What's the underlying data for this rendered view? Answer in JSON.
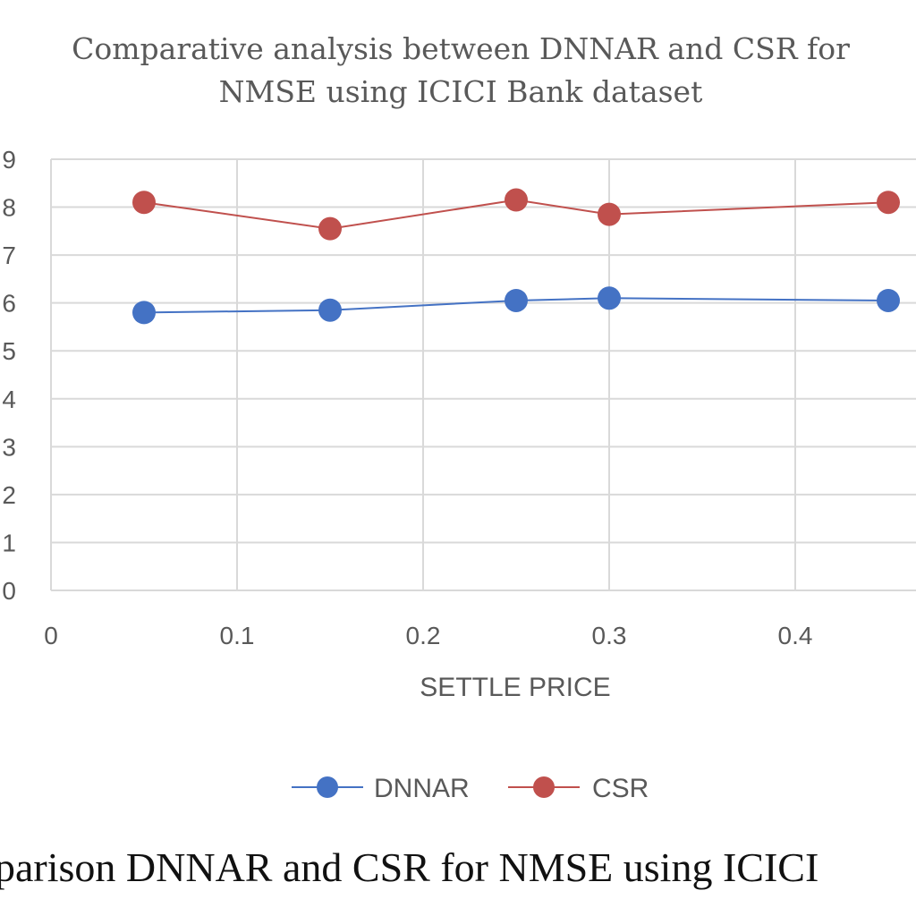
{
  "chart_data": {
    "type": "line",
    "title": [
      "Comparative analysis between DNNAR and CSR for",
      "NMSE using ICICI Bank dataset"
    ],
    "xlabel": "SETTLE PRICE",
    "ylabel": "",
    "xlim": [
      0,
      0.5
    ],
    "ylim": [
      0,
      9
    ],
    "x_ticks": [
      "0",
      "0.1",
      "0.2",
      "0.3",
      "0.4"
    ],
    "y_ticks": [
      "0",
      "1",
      "2",
      "3",
      "4",
      "5",
      "6",
      "7",
      "8",
      "9"
    ],
    "grid": true,
    "legend_position": "bottom",
    "series": [
      {
        "name": "DNNAR",
        "color": "#4472c4",
        "x": [
          0.05,
          0.15,
          0.25,
          0.3,
          0.45
        ],
        "y": [
          5.8,
          5.85,
          6.05,
          6.1,
          6.05
        ]
      },
      {
        "name": "CSR",
        "color": "#c0504d",
        "x": [
          0.05,
          0.15,
          0.25,
          0.3,
          0.45
        ],
        "y": [
          8.1,
          7.55,
          8.15,
          7.85,
          8.1
        ]
      }
    ]
  },
  "caption": "parison DNNAR and CSR for NMSE using ICICI"
}
